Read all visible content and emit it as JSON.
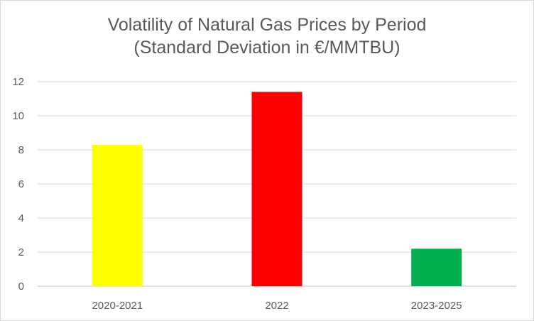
{
  "chart_data": {
    "type": "bar",
    "title": "Volatility of Natural Gas Prices by Period",
    "subtitle": "(Standard Deviation in €/MMTBU)",
    "categories": [
      "2020-2021",
      "2022",
      "2023-2025"
    ],
    "values": [
      8.3,
      11.4,
      2.2
    ],
    "bar_colors": [
      "#ffff00",
      "#ff0000",
      "#00b050"
    ],
    "ylim": [
      0,
      12
    ],
    "yticks": [
      "0",
      "2",
      "4",
      "6",
      "8",
      "10",
      "12"
    ],
    "xlabel": "",
    "ylabel": "",
    "grid": true,
    "legend": "none"
  }
}
